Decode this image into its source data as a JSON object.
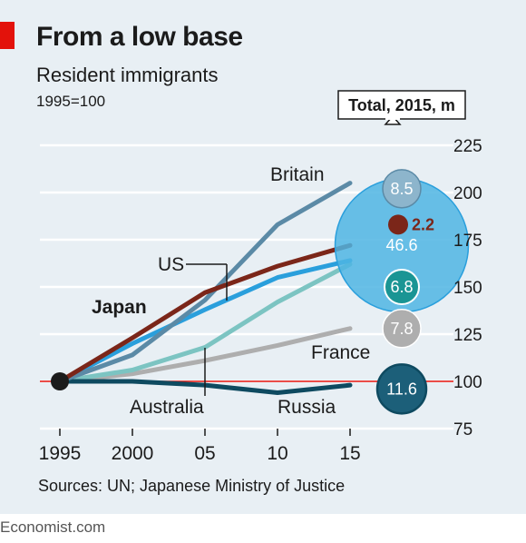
{
  "title": "From a low base",
  "subtitle": "Resident immigrants",
  "index_note": "1995=100",
  "source": "Sources: UN; Japanese Ministry of Justice",
  "footer": "Economist.com",
  "total_box_label": "Total, 2015, m",
  "chart_data": {
    "type": "line",
    "ylim": [
      75,
      225
    ],
    "y_ticks": [
      75,
      100,
      125,
      150,
      175,
      200,
      225
    ],
    "x_ticks": [
      {
        "value": 1995,
        "label": "1995"
      },
      {
        "value": 2000,
        "label": "2000"
      },
      {
        "value": 2005,
        "label": "05"
      },
      {
        "value": 2010,
        "label": "10"
      },
      {
        "value": 2015,
        "label": "15"
      }
    ],
    "reference_line": 100,
    "start_point": {
      "x": 1995,
      "y": 100
    },
    "series": [
      {
        "name": "Britain",
        "color": "#5b8aa6",
        "values": [
          [
            1995,
            100
          ],
          [
            2000,
            114
          ],
          [
            2005,
            143
          ],
          [
            2010,
            183
          ],
          [
            2015,
            205
          ]
        ]
      },
      {
        "name": "US",
        "color": "#2a9fdc",
        "values": [
          [
            1995,
            100
          ],
          [
            2000,
            120
          ],
          [
            2005,
            138
          ],
          [
            2010,
            155
          ],
          [
            2015,
            164
          ]
        ]
      },
      {
        "name": "Japan",
        "color": "#7b2619",
        "values": [
          [
            1995,
            100
          ],
          [
            2000,
            123
          ],
          [
            2005,
            147
          ],
          [
            2010,
            161
          ],
          [
            2015,
            172
          ]
        ]
      },
      {
        "name": "Australia",
        "color": "#7cc4c2",
        "values": [
          [
            1995,
            100
          ],
          [
            2000,
            106
          ],
          [
            2005,
            118
          ],
          [
            2010,
            142
          ],
          [
            2015,
            162
          ]
        ]
      },
      {
        "name": "France",
        "color": "#aeaeae",
        "values": [
          [
            1995,
            100
          ],
          [
            2000,
            104
          ],
          [
            2005,
            111
          ],
          [
            2010,
            119
          ],
          [
            2015,
            128
          ]
        ]
      },
      {
        "name": "Russia",
        "color": "#0e4a60",
        "values": [
          [
            1995,
            100
          ],
          [
            2000,
            100
          ],
          [
            2005,
            98
          ],
          [
            2010,
            94
          ],
          [
            2015,
            98
          ]
        ]
      }
    ],
    "totals_2015_m": [
      {
        "country": "Britain",
        "value": 8.5,
        "label": "8.5",
        "y": 202,
        "color": "#8db5cc"
      },
      {
        "country": "US",
        "value": 46.6,
        "label": "46.6",
        "y": 172,
        "color": "#4fb5e3"
      },
      {
        "country": "Japan",
        "value": 2.2,
        "label": "2.2",
        "y": 183,
        "color": "#7b2619"
      },
      {
        "country": "Australia",
        "value": 6.8,
        "label": "6.8",
        "y": 150,
        "color": "#1a9594"
      },
      {
        "country": "France",
        "value": 7.8,
        "label": "7.8",
        "y": 128,
        "color": "#aeaeae"
      },
      {
        "country": "Russia",
        "value": 11.6,
        "label": "11.6",
        "y": 96,
        "color": "#1c5f79"
      }
    ]
  }
}
